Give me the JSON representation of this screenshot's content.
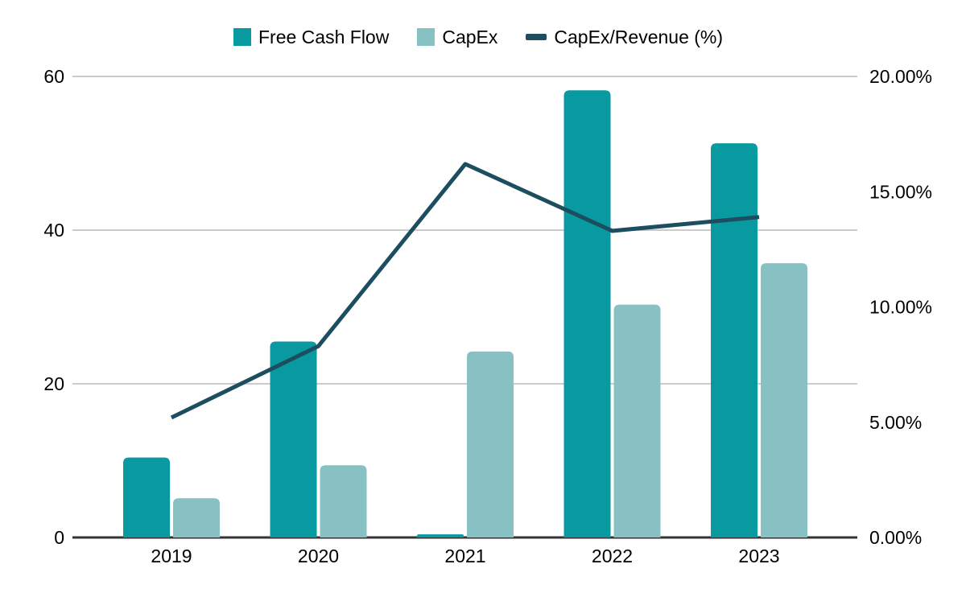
{
  "legend": {
    "items": [
      {
        "label": "Free Cash Flow",
        "swatch": "square",
        "color": "#0899A1"
      },
      {
        "label": "CapEx",
        "swatch": "square",
        "color": "#87C1C4"
      },
      {
        "label": "CapEx/Revenue (%)",
        "swatch": "line",
        "color": "#1D4E5F"
      }
    ]
  },
  "chart_data": {
    "type": "combo",
    "title": "",
    "categories": [
      "2019",
      "2020",
      "2021",
      "2022",
      "2023"
    ],
    "series": [
      {
        "name": "Free Cash Flow",
        "type": "bar",
        "axis": "left",
        "color": "#0899A1",
        "values": [
          10.4,
          25.5,
          0.4,
          58.2,
          51.3
        ]
      },
      {
        "name": "CapEx",
        "type": "bar",
        "axis": "left",
        "color": "#87C1C4",
        "values": [
          5.1,
          9.4,
          24.2,
          30.3,
          35.7
        ]
      },
      {
        "name": "CapEx/Revenue (%)",
        "type": "line",
        "axis": "right",
        "color": "#1D4E5F",
        "values": [
          5.2,
          8.3,
          16.2,
          13.3,
          13.9
        ]
      }
    ],
    "left_axis": {
      "min": 0,
      "max": 60,
      "tick_labels": [
        "0",
        "20",
        "40",
        "60"
      ]
    },
    "right_axis": {
      "min": 0,
      "max": 20,
      "tick_labels": [
        "0.00%",
        "5.00%",
        "10.00%",
        "15.00%",
        "20.00%"
      ]
    },
    "grid": true,
    "legend_position": "top",
    "colors": {
      "gridline": "#CBCBCB",
      "baseline": "#333333",
      "axis_text": "#000000"
    }
  }
}
